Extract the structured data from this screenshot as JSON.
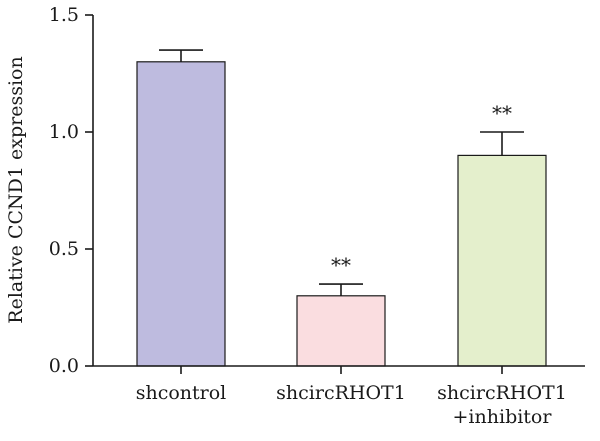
{
  "chart_data": {
    "type": "bar",
    "title": "",
    "xlabel": "",
    "ylabel": "Relative CCND1 expression",
    "ylim": [
      0,
      1.5
    ],
    "yticks": [
      "0.0",
      "0.5",
      "1.0",
      "1.5"
    ],
    "grid": false,
    "categories": [
      [
        "shcontrol"
      ],
      [
        "shcircRHOT1"
      ],
      [
        "shcircRHOT1",
        "+inhibitor"
      ]
    ],
    "values": [
      1.3,
      0.3,
      0.9
    ],
    "errors": [
      0.05,
      0.05,
      0.1
    ],
    "significance": [
      "",
      "**",
      "**"
    ],
    "colors": [
      "#bebbdf",
      "#fadde0",
      "#e4efcc"
    ]
  }
}
